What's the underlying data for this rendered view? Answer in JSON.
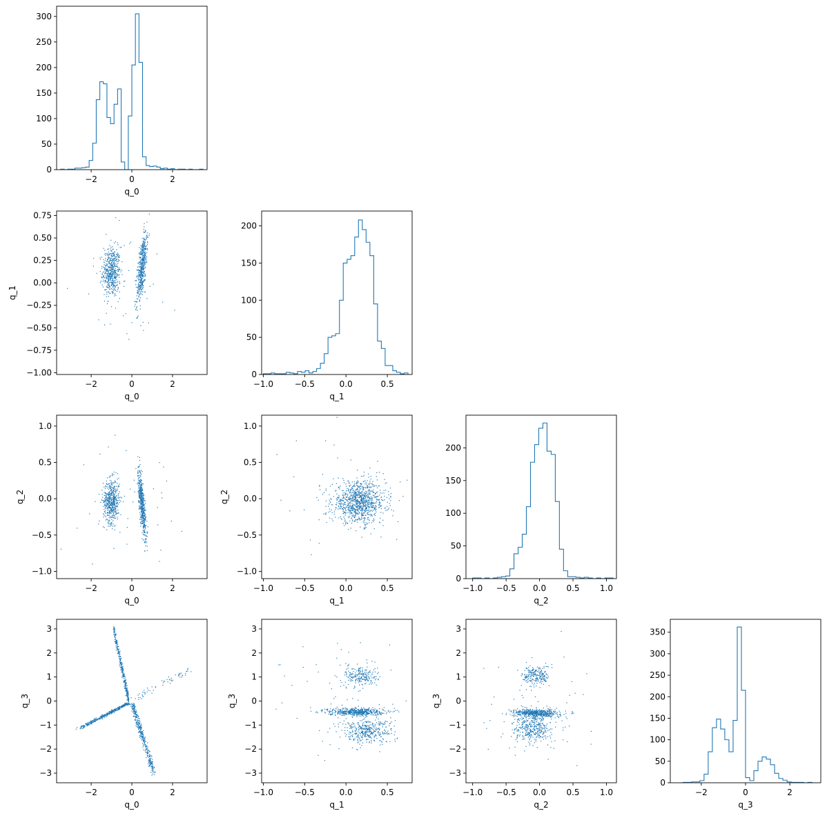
{
  "colors": {
    "series": "#1f77b4",
    "axes": "#000000",
    "background": "#ffffff"
  },
  "chart_data": {
    "type": "corner",
    "variables": [
      "q_0",
      "q_1",
      "q_2",
      "q_3"
    ],
    "grid": false,
    "ranges": {
      "q_0": [
        -3.7,
        3.7
      ],
      "q_1": [
        -1.02,
        0.8
      ],
      "q_2": [
        -1.1,
        1.15
      ],
      "q_3": [
        -3.4,
        3.4
      ]
    },
    "ticks": {
      "q_0": [
        -2,
        0,
        2
      ],
      "q_1": [
        -1.0,
        -0.75,
        -0.5,
        -0.25,
        0.0,
        0.25,
        0.5,
        0.75
      ],
      "q_1_x": [
        -1.0,
        -0.5,
        0.0,
        0.5
      ],
      "q_2": [
        -1.0,
        -0.5,
        0.0,
        0.5,
        1.0
      ],
      "q_3": [
        -3,
        -2,
        -1,
        0,
        1,
        2,
        3
      ],
      "q_3_x": [
        -2,
        0,
        2
      ]
    },
    "tick_labels": {
      "q_0": [
        "−2",
        "0",
        "2"
      ],
      "q_1": [
        "−1.00",
        "−0.75",
        "−0.50",
        "−0.25",
        "0.00",
        "0.25",
        "0.50",
        "0.75"
      ],
      "q_1_x": [
        "−1.0",
        "−0.5",
        "0.0",
        "0.5"
      ],
      "q_2": [
        "−1.0",
        "−0.5",
        "0.0",
        "0.5",
        "1.0"
      ],
      "q_3": [
        "−3",
        "−2",
        "−1",
        "0",
        "1",
        "2",
        "3"
      ],
      "q_3_x": [
        "−2",
        "0",
        "2"
      ]
    },
    "histograms": [
      {
        "variable": "q_0",
        "bin_edges_range": [
          -3.5,
          3.5
        ],
        "counts": [
          1,
          0,
          1,
          1,
          3,
          3,
          4,
          5,
          18,
          52,
          137,
          172,
          168,
          102,
          90,
          128,
          158,
          15,
          0,
          105,
          205,
          305,
          210,
          25,
          8,
          6,
          7,
          5,
          2,
          3,
          1,
          2,
          0,
          1,
          1,
          0,
          1,
          0,
          0,
          1
        ],
        "yticks": [
          0,
          50,
          100,
          150,
          200,
          250,
          300
        ],
        "ylim": [
          0,
          320
        ]
      },
      {
        "variable": "q_1",
        "bin_edges_range": [
          -1.0,
          0.75
        ],
        "counts": [
          1,
          1,
          2,
          1,
          1,
          1,
          3,
          2,
          1,
          4,
          3,
          5,
          2,
          4,
          8,
          15,
          28,
          50,
          52,
          55,
          100,
          150,
          155,
          160,
          185,
          208,
          195,
          178,
          160,
          95,
          45,
          35,
          12,
          12,
          5,
          3,
          1,
          2
        ],
        "yticks": [
          0,
          50,
          100,
          150,
          200
        ],
        "ylim": [
          0,
          220
        ]
      },
      {
        "variable": "q_2",
        "bin_edges_range": [
          -1.0,
          1.1
        ],
        "counts": [
          1,
          1,
          0,
          1,
          0,
          1,
          2,
          3,
          4,
          15,
          38,
          48,
          68,
          110,
          178,
          205,
          230,
          238,
          195,
          190,
          118,
          45,
          12,
          3,
          3,
          2,
          1,
          2,
          1,
          0,
          1,
          0,
          1,
          1
        ],
        "yticks": [
          0,
          50,
          100,
          150,
          200
        ],
        "ylim": [
          0,
          250
        ]
      },
      {
        "variable": "q_3",
        "bin_edges_range": [
          -3.0,
          3.0
        ],
        "counts": [
          0,
          1,
          1,
          2,
          2,
          5,
          20,
          72,
          128,
          148,
          125,
          100,
          72,
          145,
          362,
          215,
          12,
          5,
          28,
          50,
          60,
          55,
          42,
          22,
          10,
          6,
          2,
          1,
          1,
          1,
          0,
          1
        ],
        "yticks": [
          0,
          50,
          100,
          150,
          200,
          250,
          300,
          350
        ],
        "ylim": [
          0,
          380
        ]
      }
    ],
    "scatter_clusters": [
      {
        "x": "q_0",
        "y": "q_1",
        "clusters": [
          {
            "cx": -1.0,
            "cy": 0.12,
            "sx": 0.22,
            "sy": 0.14,
            "n": 520
          },
          {
            "cx": 0.5,
            "cy": 0.17,
            "sx": 0.12,
            "sy": 0.15,
            "n": 520,
            "slope": 0.22
          },
          {
            "cx": 0.0,
            "cy": 0.0,
            "sx": 1.3,
            "sy": 0.35,
            "n": 40
          }
        ]
      },
      {
        "x": "q_0",
        "y": "q_2",
        "clusters": [
          {
            "cx": -1.0,
            "cy": -0.03,
            "sx": 0.2,
            "sy": 0.15,
            "n": 520
          },
          {
            "cx": 0.5,
            "cy": -0.07,
            "sx": 0.1,
            "sy": 0.16,
            "n": 520,
            "slope": -0.35
          },
          {
            "cx": 0.0,
            "cy": 0.0,
            "sx": 1.3,
            "sy": 0.4,
            "n": 40
          }
        ]
      },
      {
        "x": "q_1",
        "y": "q_2",
        "clusters": [
          {
            "cx": 0.16,
            "cy": -0.05,
            "sx": 0.16,
            "sy": 0.14,
            "n": 1000
          },
          {
            "cx": 0.0,
            "cy": 0.0,
            "sx": 0.45,
            "sy": 0.4,
            "n": 50
          }
        ]
      },
      {
        "x": "q_0",
        "y": "q_3",
        "clusters": [
          {
            "cx": -0.5,
            "cy": 0.9,
            "sx": 0.1,
            "sy": 0.6,
            "n": 320,
            "line": [
              [
                -0.15,
                0.05
              ],
              [
                -0.9,
                3.0
              ]
            ]
          },
          {
            "cx": -1.0,
            "cy": -0.4,
            "sx": 0.6,
            "sy": 0.08,
            "n": 380,
            "line": [
              [
                -0.2,
                -0.1
              ],
              [
                -2.6,
                -1.15
              ]
            ]
          },
          {
            "cx": 0.6,
            "cy": -1.5,
            "sx": 0.1,
            "sy": 0.6,
            "n": 380,
            "line": [
              [
                0.05,
                -0.2
              ],
              [
                1.1,
                -3.0
              ]
            ]
          },
          {
            "cx": 0.8,
            "cy": 0.3,
            "sx": 0.3,
            "sy": 0.1,
            "n": 60,
            "line": [
              [
                0.05,
                0.05
              ],
              [
                2.8,
                1.3
              ]
            ]
          }
        ]
      },
      {
        "x": "q_1",
        "y": "q_3",
        "clusters": [
          {
            "cx": 0.18,
            "cy": 1.05,
            "sx": 0.1,
            "sy": 0.22,
            "n": 220
          },
          {
            "cx": 0.12,
            "cy": -0.45,
            "sx": 0.17,
            "sy": 0.08,
            "n": 500
          },
          {
            "cx": 0.25,
            "cy": -1.25,
            "sx": 0.16,
            "sy": 0.25,
            "n": 380
          },
          {
            "cx": 0.0,
            "cy": 0.0,
            "sx": 0.4,
            "sy": 1.3,
            "n": 60
          }
        ]
      },
      {
        "x": "q_2",
        "y": "q_3",
        "clusters": [
          {
            "cx": -0.05,
            "cy": 1.05,
            "sx": 0.1,
            "sy": 0.22,
            "n": 220
          },
          {
            "cx": -0.05,
            "cy": -0.5,
            "sx": 0.17,
            "sy": 0.08,
            "n": 500
          },
          {
            "cx": -0.1,
            "cy": -1.15,
            "sx": 0.14,
            "sy": 0.3,
            "n": 380
          },
          {
            "cx": 0.0,
            "cy": 0.0,
            "sx": 0.45,
            "sy": 1.3,
            "n": 60
          }
        ]
      }
    ]
  }
}
